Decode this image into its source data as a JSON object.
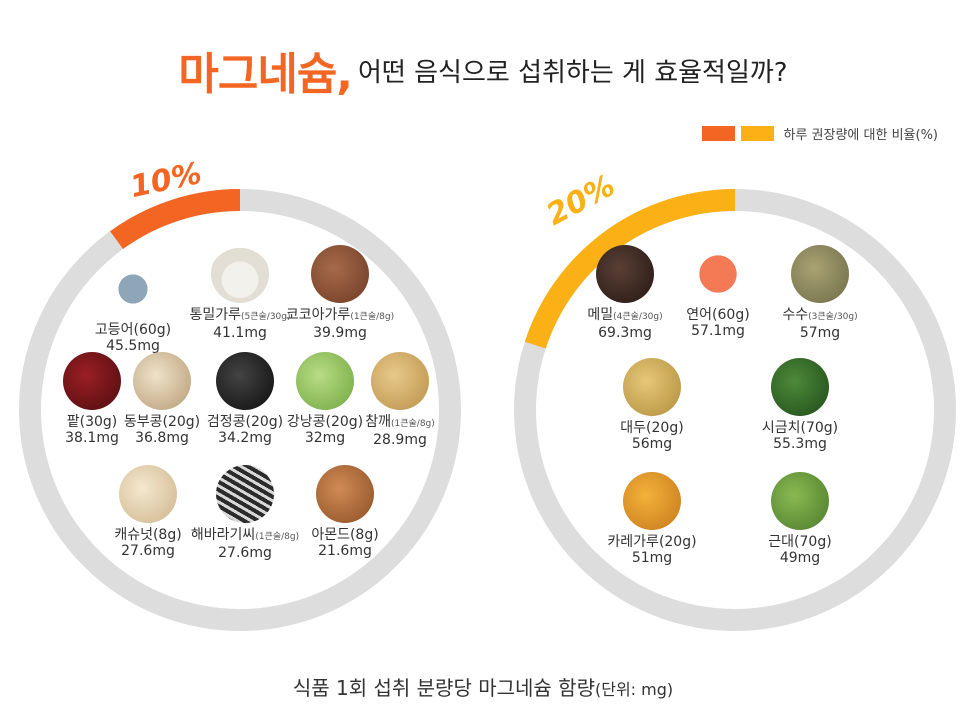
{
  "header": {
    "title_accent": "마그네슘,",
    "title_rest": "어떤 음식으로 섭취하는 게 효율적일까?"
  },
  "legend": {
    "label": "하루 권장량에 대한 비율(%)",
    "colors": [
      "#f26522",
      "#fbb116"
    ]
  },
  "colors": {
    "ring_bg": "#dddddd",
    "ten": "#f26522",
    "twenty": "#fbb116"
  },
  "chart_data": [
    {
      "type": "pie",
      "percent": 10,
      "percent_label": "10%",
      "items": [
        {
          "name": "고등어(60g)",
          "serving": "",
          "value": 45.5,
          "value_label": "45.5mg",
          "icon": "mackerel-icon"
        },
        {
          "name": "통밀가루",
          "serving": "(5큰술/30g)",
          "value": 41.1,
          "value_label": "41.1mg",
          "icon": "wheat-flour-icon"
        },
        {
          "name": "코코아가루",
          "serving": "(1큰술/8g)",
          "value": 39.9,
          "value_label": "39.9mg",
          "icon": "cocoa-powder-icon"
        },
        {
          "name": "팥(30g)",
          "serving": "",
          "value": 38.1,
          "value_label": "38.1mg",
          "icon": "red-bean-icon"
        },
        {
          "name": "동부콩(20g)",
          "serving": "",
          "value": 36.8,
          "value_label": "36.8mg",
          "icon": "cowpea-icon"
        },
        {
          "name": "검정콩(20g)",
          "serving": "",
          "value": 34.2,
          "value_label": "34.2mg",
          "icon": "black-bean-icon"
        },
        {
          "name": "강낭콩(20g)",
          "serving": "",
          "value": 32,
          "value_label": "32mg",
          "icon": "kidney-bean-icon"
        },
        {
          "name": "참깨",
          "serving": "(1큰술/8g)",
          "value": 28.9,
          "value_label": "28.9mg",
          "icon": "sesame-icon"
        },
        {
          "name": "캐슈넛(8g)",
          "serving": "",
          "value": 27.6,
          "value_label": "27.6mg",
          "icon": "cashew-icon"
        },
        {
          "name": "해바라기씨",
          "serving": "(1큰술/8g)",
          "value": 27.6,
          "value_label": "27.6mg",
          "icon": "sunflower-seed-icon"
        },
        {
          "name": "아몬드(8g)",
          "serving": "",
          "value": 21.6,
          "value_label": "21.6mg",
          "icon": "almond-icon"
        }
      ]
    },
    {
      "type": "pie",
      "percent": 20,
      "percent_label": "20%",
      "items": [
        {
          "name": "메밀",
          "serving": "(4큰술/30g)",
          "value": 69.3,
          "value_label": "69.3mg",
          "icon": "buckwheat-icon"
        },
        {
          "name": "연어(60g)",
          "serving": "",
          "value": 57.1,
          "value_label": "57.1mg",
          "icon": "salmon-icon"
        },
        {
          "name": "수수",
          "serving": "(3큰술/30g)",
          "value": 57,
          "value_label": "57mg",
          "icon": "sorghum-icon"
        },
        {
          "name": "대두(20g)",
          "serving": "",
          "value": 56,
          "value_label": "56mg",
          "icon": "soybean-icon"
        },
        {
          "name": "시금치(70g)",
          "serving": "",
          "value": 55.3,
          "value_label": "55.3mg",
          "icon": "spinach-icon"
        },
        {
          "name": "카레가루(20g)",
          "serving": "",
          "value": 51,
          "value_label": "51mg",
          "icon": "curry-powder-icon"
        },
        {
          "name": "근대(70g)",
          "serving": "",
          "value": 49,
          "value_label": "49mg",
          "icon": "chard-icon"
        }
      ]
    }
  ],
  "footer": {
    "text": "식품 1회 섭취 분량당 마그네슘 함량",
    "unit": "(단위: mg)"
  }
}
